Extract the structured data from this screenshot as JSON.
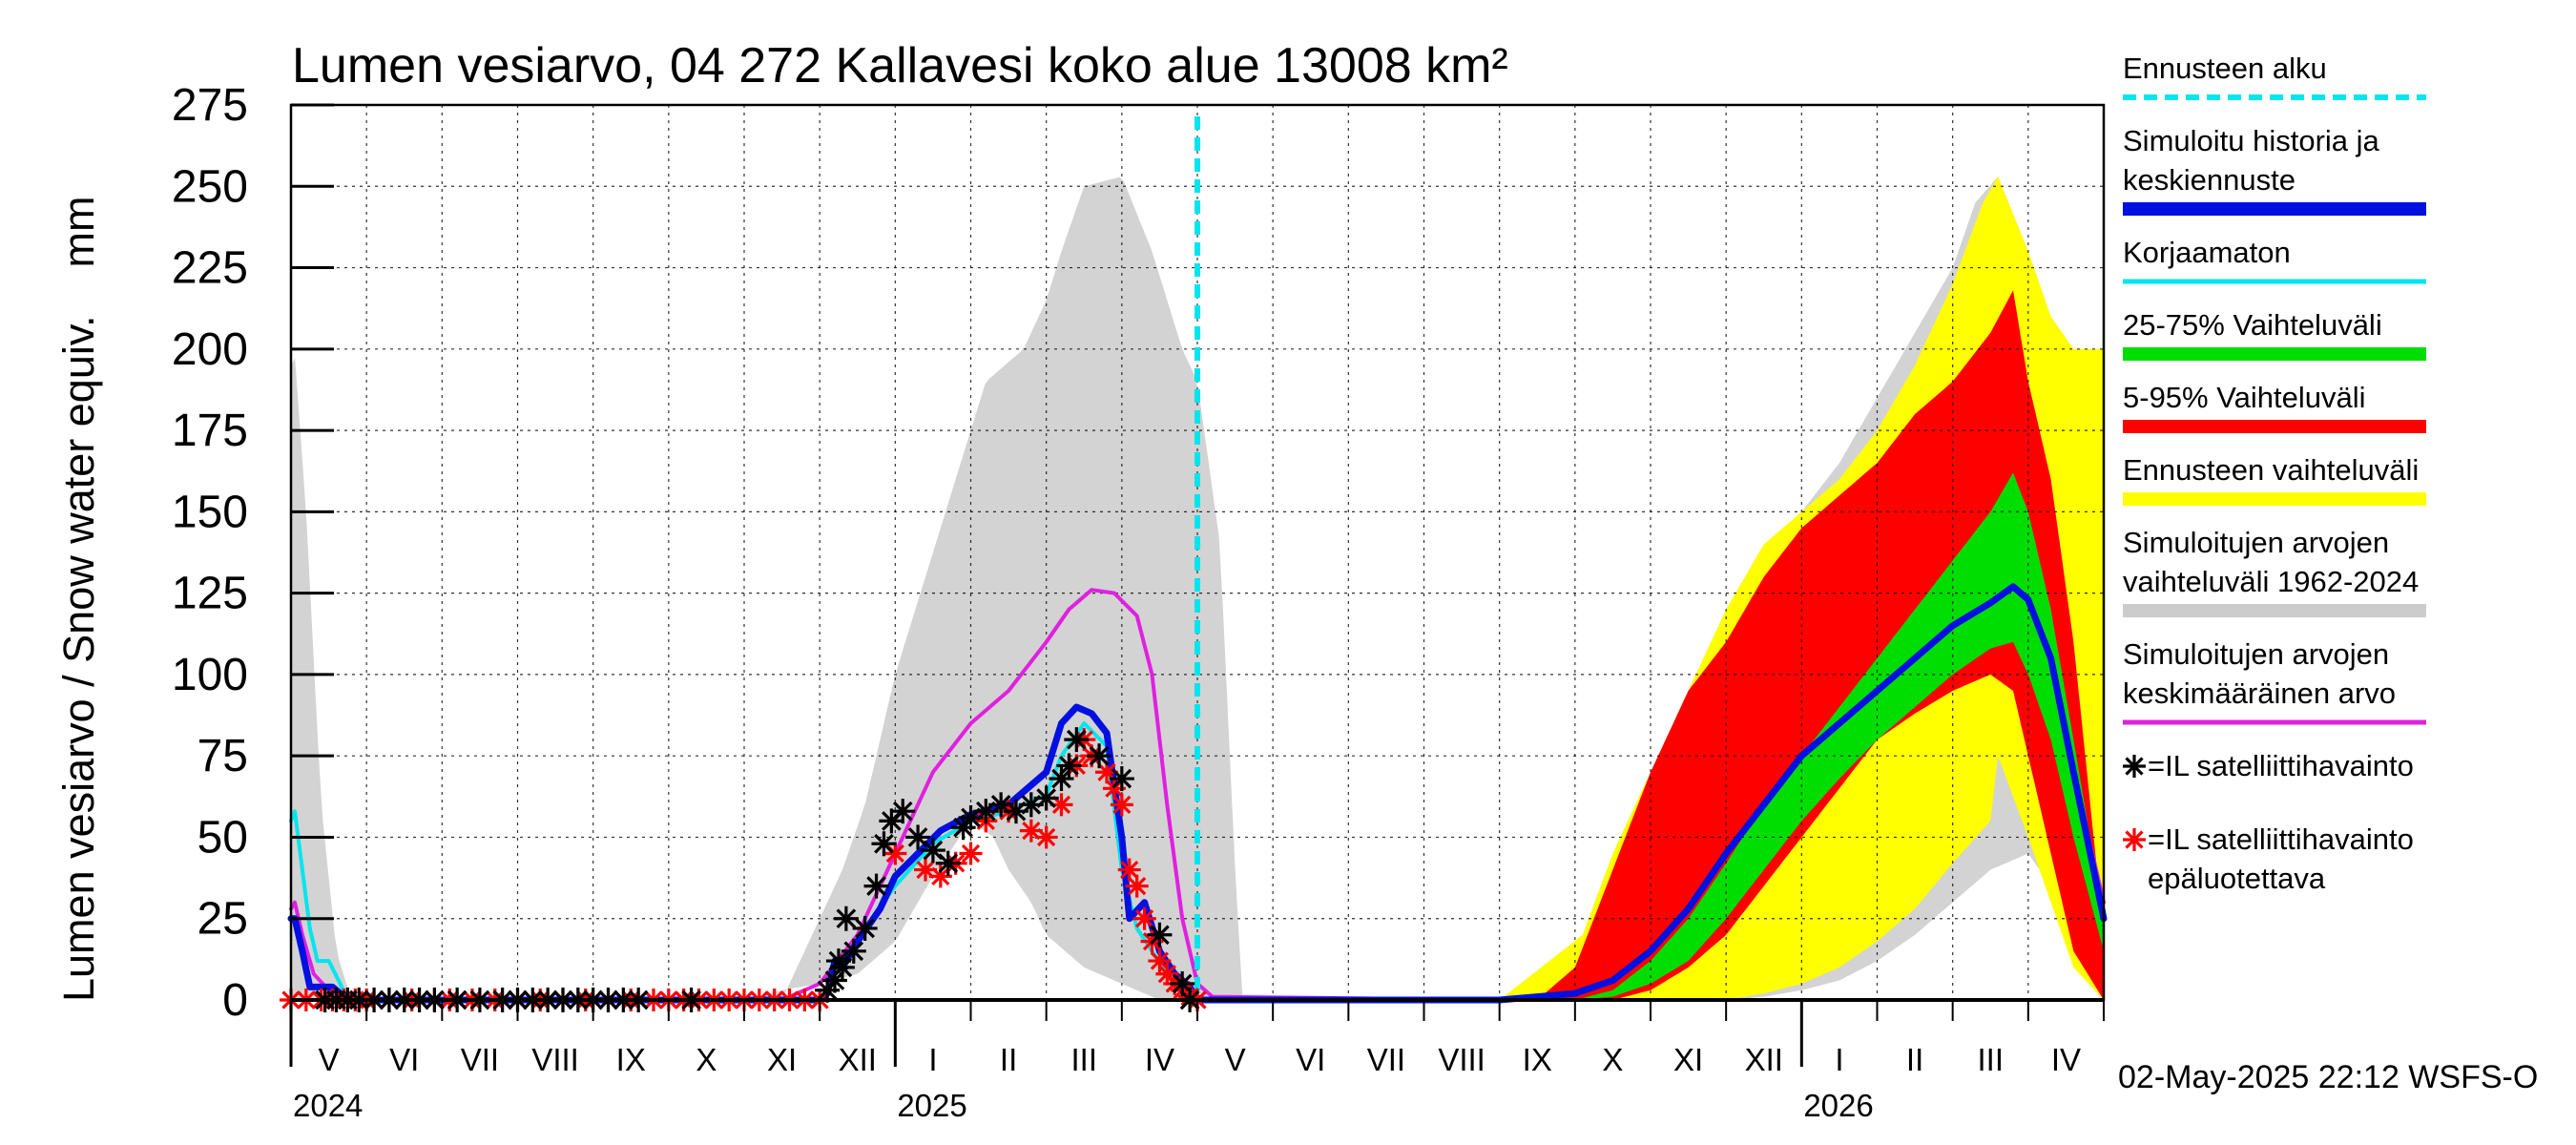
{
  "chart_data": {
    "type": "area",
    "title": "Lumen vesiarvo, 04 272 Kallavesi koko alue 13008 km²",
    "ylabel": "Lumen vesiarvo / Snow water equiv.    mm",
    "ylim": [
      0,
      275
    ],
    "yticks": [
      0,
      25,
      50,
      75,
      100,
      125,
      150,
      175,
      200,
      225,
      250,
      275
    ],
    "x_unit": "months since 2024-05-01",
    "xlim": [
      0,
      24
    ],
    "grid": true,
    "forecast_start_x": 12.0,
    "month_labels": [
      "V",
      "VI",
      "VII",
      "VIII",
      "IX",
      "X",
      "XI",
      "XII",
      "I",
      "II",
      "III",
      "IV",
      "V",
      "VI",
      "VII",
      "VIII",
      "IX",
      "X",
      "XI",
      "XII",
      "I",
      "II",
      "III",
      "IV"
    ],
    "year_labels": [
      {
        "label": "2024",
        "x": 0.0
      },
      {
        "label": "2025",
        "x": 8.0
      },
      {
        "label": "2026",
        "x": 20.0
      }
    ],
    "timestamp": "02-May-2025 22:12 WSFS-O",
    "legend": [
      {
        "key": "forecast_start",
        "lines": [
          "Ennusteen alku"
        ],
        "color": "#00e5ee",
        "style": "dashed"
      },
      {
        "key": "simulated",
        "lines": [
          "Simuloitu historia ja",
          "keskiennuste"
        ],
        "color": "#0010e0",
        "style": "thick"
      },
      {
        "key": "uncorrected",
        "lines": [
          "Korjaamaton"
        ],
        "color": "#00e5ee",
        "style": "line"
      },
      {
        "key": "p25_75",
        "lines": [
          "25-75% Vaihteluväli"
        ],
        "color": "#00dd00",
        "style": "thick"
      },
      {
        "key": "p5_95",
        "lines": [
          "5-95% Vaihteluväli"
        ],
        "color": "#ff0000",
        "style": "thick"
      },
      {
        "key": "forecast_range",
        "lines": [
          "Ennusteen vaihteluväli"
        ],
        "color": "#ffff00",
        "style": "thick"
      },
      {
        "key": "hist_range",
        "lines": [
          "Simuloitujen arvojen",
          "vaihteluväli 1962-2024"
        ],
        "color": "#cccccc",
        "style": "thick"
      },
      {
        "key": "hist_mean",
        "lines": [
          "Simuloitujen arvojen",
          "keskimääräinen arvo"
        ],
        "color": "#e020e0",
        "style": "line"
      },
      {
        "key": "sat_obs",
        "lines": [
          "=IL satelliittihavainto"
        ],
        "color": "#000000",
        "style": "star"
      },
      {
        "key": "sat_unreliable",
        "lines": [
          "=IL satelliittihavainto",
          "epäluotettava"
        ],
        "color": "#ff0000",
        "style": "star"
      }
    ],
    "colors": {
      "hist_range": "#d3d3d3",
      "forecast_range": "#ffff00",
      "p5_95": "#ff0000",
      "p25_75": "#00dd00",
      "simulated": "#0010e0",
      "uncorrected": "#00e5ee",
      "hist_mean": "#e020e0",
      "forecast_start": "#00e5ee"
    },
    "series": [
      {
        "name": "hist_range_max",
        "x": [
          0,
          0.05,
          0.2,
          0.4,
          0.6,
          0.8,
          1,
          4,
          6.5,
          7,
          7.3,
          7.6,
          8,
          8.4,
          8.8,
          9.2,
          9.7,
          10,
          10.2,
          10.5,
          11,
          11.4,
          11.8,
          12,
          12.3,
          12.5,
          12.6
        ],
        "values": [
          195,
          198,
          150,
          60,
          15,
          0,
          0,
          0,
          0,
          25,
          40,
          60,
          100,
          130,
          160,
          190,
          200,
          215,
          230,
          250,
          253,
          230,
          200,
          190,
          140,
          40,
          0
        ]
      },
      {
        "name": "hist_range_max_next",
        "x": [
          16,
          16.8,
          17,
          17.3,
          17.6,
          18,
          18.5,
          19,
          19.5,
          20,
          20.5,
          21,
          21.5,
          22,
          22.3,
          22.6,
          23,
          23.3,
          23.6,
          24
        ],
        "values": [
          0,
          0,
          5,
          20,
          40,
          70,
          90,
          115,
          130,
          150,
          165,
          185,
          205,
          225,
          245,
          253,
          230,
          205,
          195,
          195
        ]
      },
      {
        "name": "hist_range_min",
        "x": [
          6,
          6.5,
          7,
          7.5,
          8,
          8.5,
          9,
          9.3,
          9.5,
          9.8,
          10,
          10.5,
          11,
          11.5,
          12
        ],
        "values": [
          0,
          3,
          5,
          8,
          18,
          38,
          55,
          50,
          40,
          30,
          20,
          10,
          5,
          0,
          0
        ]
      },
      {
        "name": "hist_range_min_next",
        "x": [
          19,
          19.5,
          20,
          20.5,
          21,
          21.5,
          22,
          22.5,
          23,
          23.3,
          23.5,
          24
        ],
        "values": [
          0,
          1,
          3,
          6,
          12,
          20,
          30,
          40,
          45,
          35,
          25,
          0
        ]
      },
      {
        "name": "forecast_max",
        "x": [
          12,
          16,
          17.1,
          17.5,
          18,
          18.5,
          19,
          19.5,
          20,
          20.5,
          21,
          21.5,
          22,
          22.4,
          22.6,
          23,
          23.3,
          23.6,
          24
        ],
        "values": [
          0,
          0,
          20,
          45,
          70,
          95,
          120,
          140,
          150,
          160,
          175,
          195,
          220,
          245,
          253,
          230,
          210,
          200,
          200
        ]
      },
      {
        "name": "forecast_min",
        "x": [
          12,
          19,
          19.5,
          20,
          20.5,
          21,
          21.5,
          22,
          22.5,
          22.6,
          23,
          23.3,
          23.6,
          24
        ],
        "values": [
          0,
          0,
          2,
          5,
          10,
          18,
          28,
          42,
          55,
          75,
          50,
          30,
          10,
          0
        ]
      },
      {
        "name": "p95",
        "x": [
          12,
          16.5,
          17,
          17.5,
          18,
          18.5,
          19,
          19.5,
          20,
          20.5,
          21,
          21.5,
          22,
          22.5,
          22.8,
          23,
          23.3,
          23.6,
          24
        ],
        "values": [
          0,
          0,
          10,
          40,
          70,
          95,
          110,
          130,
          145,
          155,
          165,
          180,
          190,
          205,
          218,
          190,
          160,
          110,
          20
        ]
      },
      {
        "name": "p5",
        "x": [
          12,
          17.5,
          18,
          18.5,
          19,
          19.5,
          20,
          20.5,
          21,
          21.5,
          22,
          22.5,
          22.8,
          23,
          23.3,
          23.6,
          24
        ],
        "values": [
          0,
          0,
          3,
          10,
          20,
          35,
          50,
          65,
          80,
          88,
          95,
          100,
          95,
          75,
          45,
          15,
          0
        ]
      },
      {
        "name": "p75",
        "x": [
          12,
          17,
          17.5,
          18,
          18.5,
          19,
          19.5,
          20,
          20.5,
          21,
          21.5,
          22,
          22.5,
          22.8,
          23,
          23.3,
          23.6,
          24
        ],
        "values": [
          0,
          0,
          3,
          12,
          25,
          42,
          60,
          75,
          90,
          105,
          120,
          135,
          150,
          162,
          150,
          120,
          80,
          25
        ]
      },
      {
        "name": "p25",
        "x": [
          12,
          17,
          17.5,
          18,
          18.5,
          19,
          19.5,
          20,
          20.5,
          21,
          21.5,
          22,
          22.5,
          22.8,
          23,
          23.3,
          23.6,
          24
        ],
        "values": [
          0,
          0,
          1,
          5,
          12,
          25,
          40,
          55,
          68,
          80,
          90,
          100,
          108,
          110,
          100,
          80,
          50,
          15
        ]
      },
      {
        "name": "simulated",
        "x": [
          0,
          0.05,
          0.15,
          0.25,
          0.4,
          0.55,
          0.65,
          0.8,
          1,
          7.0,
          7.1,
          7.2,
          7.3,
          7.5,
          7.8,
          8.0,
          8.3,
          8.6,
          9.0,
          9.5,
          10.0,
          10.2,
          10.4,
          10.6,
          10.8,
          11.0,
          11.1,
          11.3,
          11.5,
          11.7,
          11.9,
          12.0,
          12.1,
          12.3,
          16,
          17,
          17.5,
          18,
          18.5,
          19,
          19.5,
          20,
          20.5,
          21,
          21.5,
          22,
          22.5,
          22.8,
          23,
          23.3,
          23.6,
          24
        ],
        "values": [
          25,
          25,
          15,
          4,
          4,
          4,
          2,
          0,
          0,
          0,
          2,
          12,
          10,
          18,
          28,
          38,
          45,
          52,
          57,
          60,
          70,
          85,
          90,
          88,
          82,
          50,
          25,
          30,
          15,
          8,
          4,
          0,
          0,
          0,
          0,
          2,
          6,
          15,
          28,
          45,
          60,
          75,
          85,
          95,
          105,
          115,
          122,
          127,
          123,
          105,
          70,
          25
        ]
      },
      {
        "name": "uncorrected",
        "x": [
          0,
          0.05,
          0.15,
          0.25,
          0.35,
          0.5,
          0.65,
          0.75,
          7.0,
          7.2,
          7.4,
          7.6,
          8.0,
          8.5,
          9.0,
          9.5,
          10.0,
          10.2,
          10.5,
          10.8,
          11.0,
          11.2,
          11.4,
          11.6,
          11.8,
          12.0,
          16,
          17,
          17.5,
          18,
          18.5,
          19,
          19.5,
          20,
          20.5,
          21,
          21.5,
          22,
          22.5,
          22.8,
          23,
          23.3,
          23.6,
          24
        ],
        "values": [
          55,
          58,
          40,
          22,
          12,
          12,
          5,
          0,
          0,
          8,
          15,
          22,
          35,
          48,
          55,
          58,
          63,
          75,
          85,
          78,
          40,
          22,
          15,
          8,
          3,
          0,
          0,
          2,
          6,
          15,
          28,
          45,
          60,
          75,
          85,
          95,
          105,
          115,
          122,
          127,
          123,
          105,
          70,
          25
        ]
      },
      {
        "name": "hist_mean",
        "x": [
          0,
          0.05,
          0.15,
          0.3,
          0.5,
          0.7,
          1,
          6.5,
          7,
          7.5,
          8,
          8.5,
          9,
          9.5,
          10,
          10.3,
          10.6,
          10.9,
          11.2,
          11.4,
          11.6,
          11.8,
          12,
          12.2,
          16,
          17,
          17.5,
          18,
          18.5,
          19,
          19.5,
          20,
          20.5,
          21,
          21.5,
          22,
          22.5,
          22.8,
          23,
          23.3,
          23.6,
          24
        ],
        "values": [
          28,
          30,
          20,
          8,
          3,
          1,
          0,
          0,
          5,
          20,
          45,
          70,
          85,
          95,
          110,
          120,
          126,
          125,
          118,
          100,
          60,
          25,
          5,
          1,
          0,
          2,
          6,
          15,
          28,
          45,
          60,
          75,
          85,
          95,
          105,
          115,
          122,
          127,
          123,
          105,
          70,
          30
        ]
      }
    ],
    "satellite_obs": {
      "x": [
        0.45,
        0.6,
        0.75,
        0.9,
        1.1,
        1.3,
        1.5,
        1.7,
        1.9,
        2.2,
        2.5,
        2.8,
        3.0,
        3.2,
        3.4,
        3.6,
        3.8,
        4.0,
        4.2,
        4.4,
        4.6,
        5.3,
        7.1,
        7.2,
        7.3,
        7.6,
        7.75,
        7.85,
        7.95,
        8.1,
        8.3,
        8.5,
        8.7,
        8.9,
        9.0,
        9.2,
        9.4,
        9.6,
        9.8,
        10.0,
        10.2,
        10.3,
        10.4,
        10.7,
        11.0,
        11.5,
        11.8,
        11.9,
        7.35,
        7.45,
        7.25
      ],
      "values": [
        0,
        0,
        0,
        0,
        0,
        0,
        0,
        0,
        0,
        0,
        0,
        0,
        0,
        0,
        0,
        0,
        0,
        0,
        0,
        0,
        0,
        0,
        3,
        6,
        10,
        22,
        35,
        48,
        55,
        58,
        50,
        46,
        42,
        53,
        56,
        58,
        60,
        58,
        60,
        62,
        68,
        72,
        80,
        75,
        68,
        20,
        5,
        0,
        25,
        15,
        12
      ]
    },
    "satellite_unreliable": {
      "x": [
        0,
        0.2,
        0.4,
        0.55,
        0.7,
        0.85,
        1.0,
        1.3,
        1.6,
        1.9,
        2.1,
        2.4,
        2.7,
        3.0,
        3.3,
        3.6,
        3.9,
        4.2,
        4.5,
        4.8,
        5.0,
        5.2,
        5.4,
        5.6,
        5.8,
        6.0,
        6.2,
        6.4,
        6.6,
        6.8,
        7.0,
        8.0,
        8.4,
        8.6,
        8.8,
        9.0,
        9.2,
        9.5,
        9.8,
        10.0,
        10.2,
        10.4,
        10.5,
        10.6,
        10.8,
        10.9,
        11.0,
        11.1,
        11.2,
        11.3,
        11.4,
        11.5,
        11.6,
        11.7,
        11.8,
        11.9,
        12.0
      ],
      "values": [
        0,
        0,
        0,
        0,
        0,
        0,
        0,
        0,
        0,
        0,
        0,
        0,
        0,
        0,
        0,
        0,
        0,
        0,
        0,
        0,
        0,
        0,
        0,
        0,
        0,
        0,
        0,
        0,
        0,
        0,
        0,
        45,
        40,
        38,
        42,
        45,
        55,
        58,
        52,
        50,
        60,
        72,
        80,
        75,
        70,
        65,
        60,
        40,
        35,
        25,
        18,
        12,
        8,
        5,
        3,
        1,
        0
      ]
    }
  }
}
